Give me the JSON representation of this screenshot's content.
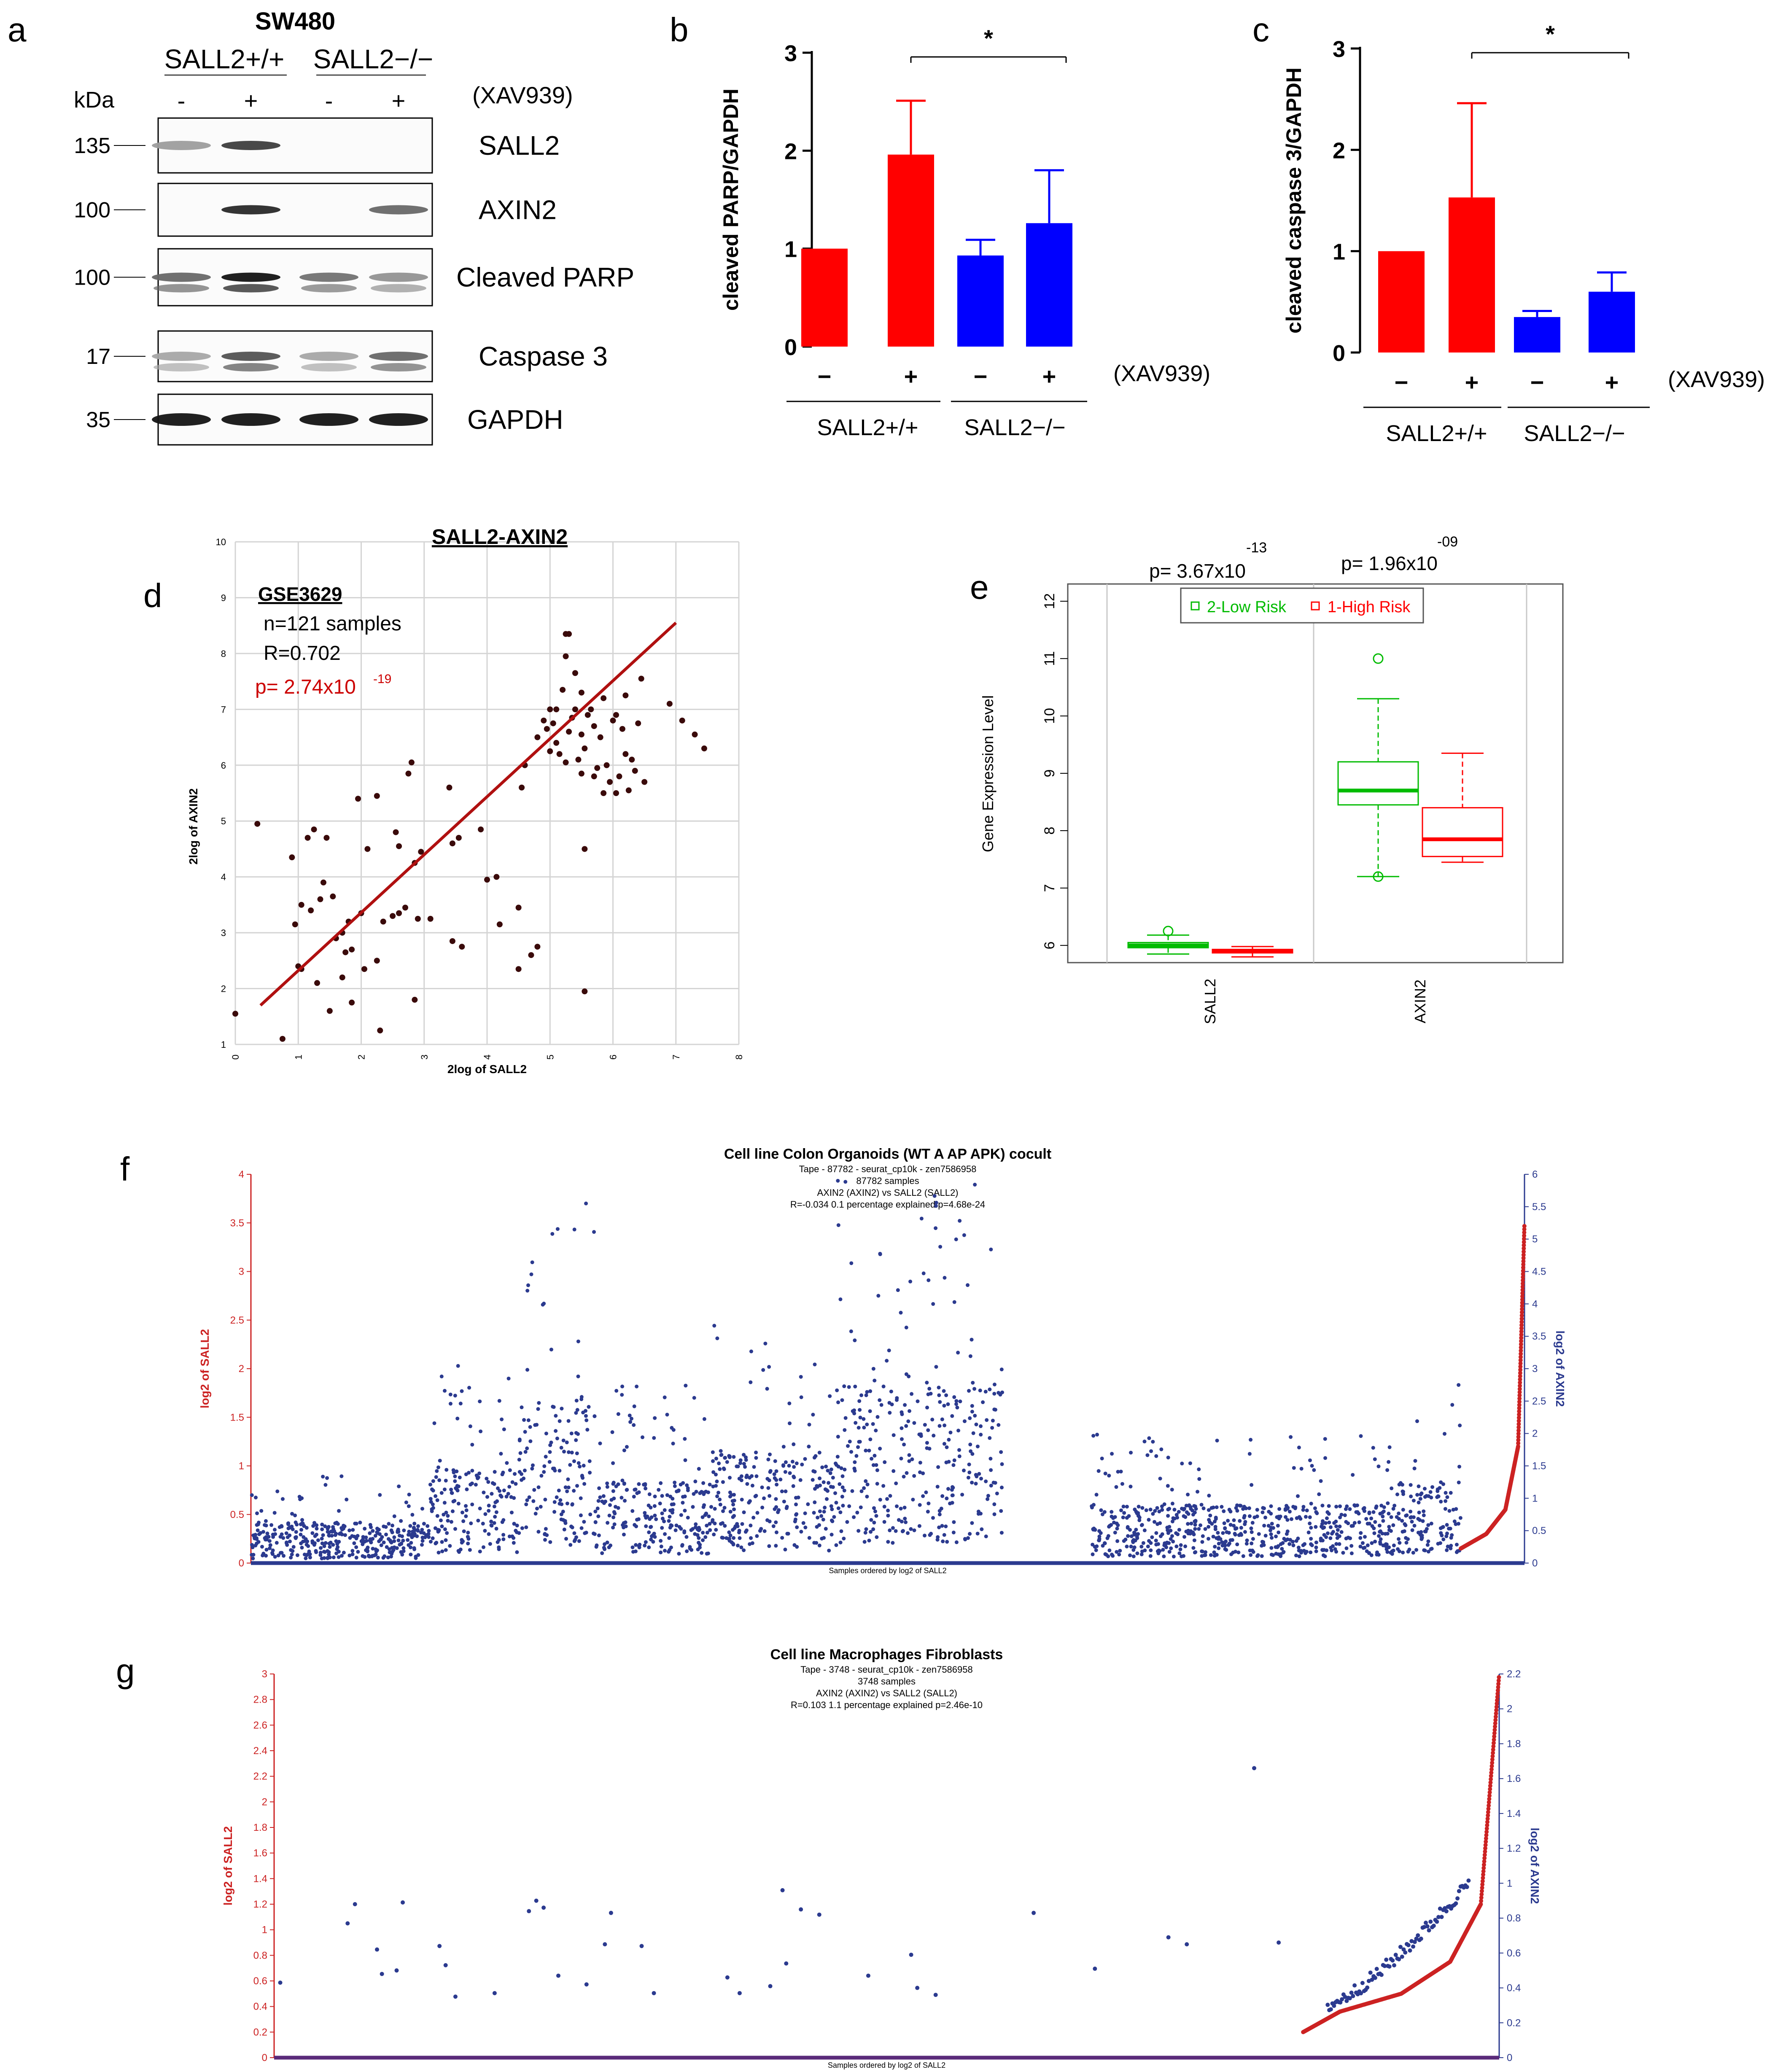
{
  "panel_letters": [
    "a",
    "b",
    "c",
    "d",
    "e",
    "f",
    "g"
  ],
  "blot": {
    "cell_line": "SW480",
    "groups": [
      "SALL2+/+",
      "SALL2−/−"
    ],
    "kda_label": "kDa",
    "treatment_label": "(XAV939)",
    "lane_signs": [
      "-",
      "+",
      "-",
      "+"
    ],
    "rows": [
      {
        "marker": "135",
        "label": "SALL2",
        "intensity": [
          0.35,
          0.8,
          0,
          0
        ]
      },
      {
        "marker": "100",
        "label": "AXIN2",
        "intensity": [
          0,
          0.9,
          0,
          0.6
        ]
      },
      {
        "marker": "100",
        "label": "Cleaved PARP",
        "intensity": [
          0.6,
          1,
          0.55,
          0.4
        ]
      },
      {
        "marker": "17",
        "label": "Caspase 3",
        "intensity": [
          0.3,
          0.7,
          0.3,
          0.6
        ]
      },
      {
        "marker": "35",
        "label": "GAPDH",
        "intensity": [
          1,
          1,
          1,
          1
        ]
      }
    ]
  },
  "chart_data": [
    {
      "panel": "b",
      "type": "bar",
      "ylabel": "cleaved PARP/GAPDH",
      "categories": [
        "−",
        "+",
        "−",
        "+"
      ],
      "group_labels": [
        "SALL2+/+",
        "SALL2−/−"
      ],
      "treatment_label": "(XAV939)",
      "values": [
        1.0,
        1.96,
        0.93,
        1.26
      ],
      "errors": [
        0,
        0.55,
        0.16,
        0.54
      ],
      "colors": [
        "#ff0000",
        "#ff0000",
        "#0000ff",
        "#0000ff"
      ],
      "ylim": [
        0,
        3
      ],
      "yticks": [
        0,
        1,
        2,
        3
      ],
      "significance": "*"
    },
    {
      "panel": "c",
      "type": "bar",
      "ylabel": "cleaved caspase 3/GAPDH",
      "categories": [
        "−",
        "+",
        "−",
        "+"
      ],
      "group_labels": [
        "SALL2+/+",
        "SALL2−/−"
      ],
      "treatment_label": "(XAV939)",
      "values": [
        1.0,
        1.53,
        0.35,
        0.6
      ],
      "errors": [
        0,
        0.93,
        0.06,
        0.19
      ],
      "colors": [
        "#ff0000",
        "#ff0000",
        "#0000ff",
        "#0000ff"
      ],
      "ylim": [
        0,
        3
      ],
      "yticks": [
        0,
        1,
        2,
        3
      ],
      "significance": "*"
    },
    {
      "panel": "d",
      "type": "scatter",
      "title": "SALL2-AXIN2",
      "dataset": "GSE3629",
      "n_text": "n=121 samples",
      "r_text": "R=0.702",
      "p_text": "p= 2.74x10",
      "p_exp": "-19",
      "xlabel": "2log of SALL2",
      "ylabel": "2log of AXIN2",
      "xlim": [
        0,
        8
      ],
      "ylim": [
        1,
        10
      ],
      "xticks": [
        0,
        1,
        2,
        3,
        4,
        5,
        6,
        7,
        8
      ],
      "yticks": [
        1,
        2,
        3,
        4,
        5,
        6,
        7,
        8,
        9,
        10
      ],
      "fit_line": [
        [
          0.4,
          1.7
        ],
        [
          7.0,
          8.55
        ]
      ],
      "points": [
        [
          0.0,
          1.55
        ],
        [
          0.35,
          4.95
        ],
        [
          0.75,
          1.1
        ],
        [
          0.9,
          4.35
        ],
        [
          0.95,
          3.15
        ],
        [
          1.0,
          2.4
        ],
        [
          1.05,
          2.35
        ],
        [
          1.05,
          3.5
        ],
        [
          1.15,
          4.7
        ],
        [
          1.2,
          3.4
        ],
        [
          1.25,
          4.85
        ],
        [
          1.3,
          2.1
        ],
        [
          1.35,
          3.6
        ],
        [
          1.4,
          3.9
        ],
        [
          1.45,
          4.7
        ],
        [
          1.5,
          1.6
        ],
        [
          1.55,
          3.65
        ],
        [
          1.6,
          2.9
        ],
        [
          1.7,
          3.0
        ],
        [
          1.7,
          2.2
        ],
        [
          1.75,
          2.65
        ],
        [
          1.8,
          3.2
        ],
        [
          1.85,
          2.7
        ],
        [
          1.85,
          1.75
        ],
        [
          1.95,
          5.4
        ],
        [
          2.0,
          3.35
        ],
        [
          2.05,
          2.35
        ],
        [
          2.1,
          4.5
        ],
        [
          2.25,
          2.5
        ],
        [
          2.25,
          5.45
        ],
        [
          2.3,
          1.25
        ],
        [
          2.35,
          3.2
        ],
        [
          2.5,
          3.3
        ],
        [
          2.55,
          4.8
        ],
        [
          2.6,
          3.35
        ],
        [
          2.6,
          4.55
        ],
        [
          2.7,
          3.45
        ],
        [
          2.75,
          5.85
        ],
        [
          2.8,
          6.05
        ],
        [
          2.85,
          4.25
        ],
        [
          2.85,
          1.8
        ],
        [
          2.9,
          3.25
        ],
        [
          2.95,
          4.45
        ],
        [
          3.1,
          3.25
        ],
        [
          3.4,
          5.6
        ],
        [
          3.45,
          2.85
        ],
        [
          3.45,
          4.6
        ],
        [
          3.55,
          4.7
        ],
        [
          3.6,
          2.75
        ],
        [
          3.9,
          4.85
        ],
        [
          4.0,
          3.95
        ],
        [
          4.15,
          4.0
        ],
        [
          4.2,
          3.15
        ],
        [
          4.5,
          2.35
        ],
        [
          4.5,
          3.45
        ],
        [
          4.55,
          5.6
        ],
        [
          4.6,
          6.0
        ],
        [
          4.7,
          2.6
        ],
        [
          4.8,
          6.5
        ],
        [
          4.8,
          2.75
        ],
        [
          4.9,
          6.8
        ],
        [
          4.95,
          6.65
        ],
        [
          5.0,
          7.0
        ],
        [
          5.0,
          6.25
        ],
        [
          5.05,
          6.75
        ],
        [
          5.1,
          7.0
        ],
        [
          5.1,
          6.4
        ],
        [
          5.15,
          6.2
        ],
        [
          5.2,
          7.35
        ],
        [
          5.25,
          6.05
        ],
        [
          5.25,
          8.35
        ],
        [
          5.25,
          7.95
        ],
        [
          5.3,
          8.35
        ],
        [
          5.3,
          6.6
        ],
        [
          5.35,
          6.85
        ],
        [
          5.4,
          7.0
        ],
        [
          5.4,
          7.65
        ],
        [
          5.45,
          6.1
        ],
        [
          5.5,
          7.3
        ],
        [
          5.5,
          6.55
        ],
        [
          5.5,
          5.85
        ],
        [
          5.55,
          6.3
        ],
        [
          5.55,
          4.5
        ],
        [
          5.55,
          1.95
        ],
        [
          5.6,
          6.9
        ],
        [
          5.65,
          7.0
        ],
        [
          5.7,
          6.7
        ],
        [
          5.7,
          5.8
        ],
        [
          5.75,
          5.95
        ],
        [
          5.8,
          6.5
        ],
        [
          5.85,
          7.2
        ],
        [
          5.85,
          5.5
        ],
        [
          5.9,
          6.0
        ],
        [
          5.95,
          5.7
        ],
        [
          6.0,
          6.8
        ],
        [
          6.05,
          5.5
        ],
        [
          6.05,
          6.9
        ],
        [
          6.1,
          5.8
        ],
        [
          6.15,
          6.65
        ],
        [
          6.2,
          7.25
        ],
        [
          6.2,
          6.2
        ],
        [
          6.25,
          5.55
        ],
        [
          6.3,
          6.1
        ],
        [
          6.35,
          5.9
        ],
        [
          6.4,
          6.75
        ],
        [
          6.45,
          7.55
        ],
        [
          6.5,
          5.7
        ],
        [
          6.9,
          7.1
        ],
        [
          7.1,
          6.8
        ],
        [
          7.3,
          6.55
        ],
        [
          7.45,
          6.3
        ]
      ]
    },
    {
      "panel": "e",
      "type": "box",
      "ylabel": "Gene Expression Level",
      "categories": [
        "SALL2",
        "AXIN2"
      ],
      "ylim": [
        5.7,
        12.3
      ],
      "yticks": [
        6,
        7,
        8,
        9,
        10,
        11,
        12
      ],
      "legend": [
        "2-Low Risk",
        "1-High Risk"
      ],
      "legend_position": "top",
      "pvalues": [
        {
          "text": "p= 3.67x10",
          "exp": "-13"
        },
        {
          "text": "p= 1.96x10",
          "exp": "-09"
        }
      ],
      "series": [
        {
          "name": "2-Low Risk",
          "color": "#00bb00",
          "boxes": [
            {
              "whislo": 5.85,
              "q1": 5.96,
              "med": 6.0,
              "q3": 6.05,
              "whishi": 6.18,
              "fliers": [
                6.25
              ]
            },
            {
              "whislo": 7.2,
              "q1": 8.45,
              "med": 8.7,
              "q3": 9.2,
              "whishi": 10.3,
              "fliers": [
                11.0,
                7.2
              ]
            }
          ]
        },
        {
          "name": "1-High Risk",
          "color": "#ff0000",
          "boxes": [
            {
              "whislo": 5.8,
              "q1": 5.87,
              "med": 5.9,
              "q3": 5.93,
              "whishi": 5.98,
              "fliers": []
            },
            {
              "whislo": 7.45,
              "q1": 7.55,
              "med": 7.85,
              "q3": 8.4,
              "whishi": 9.35,
              "fliers": []
            }
          ]
        }
      ]
    },
    {
      "panel": "f",
      "type": "scatter",
      "title": "Cell line Colon Organoids (WT A AP APK) cocult",
      "subtitle_lines": [
        "Tape - 87782 - seurat_cp10k - zen7586958",
        "87782 samples",
        "AXIN2 (AXIN2) vs SALL2 (SALL2)",
        "R=-0.034 0.1 percentage explained p=4.68e-24"
      ],
      "xlabel": "Samples ordered by log2 of SALL2",
      "ylabel_left": "log2 of SALL2",
      "ylabel_right": "log2 of AXIN2",
      "yticks_left": [
        "0",
        "0.5",
        "1",
        "1.5",
        "2",
        "2.5",
        "3",
        "3.5",
        "4"
      ],
      "yticks_right": [
        "0",
        "0.5",
        "1",
        "1.5",
        "2",
        "2.5",
        "3",
        "3.5",
        "4",
        "4.5",
        "5",
        "5.5",
        "6"
      ],
      "ylim_left": [
        0,
        4
      ],
      "ylim_right": [
        0,
        6
      ],
      "colors": {
        "sall2": "#cc2222",
        "axin2": "#2b3a8f"
      },
      "axin2_density_regions": [
        {
          "x0": 0.0,
          "x1": 0.14,
          "level": 0.35
        },
        {
          "x0": 0.14,
          "x1": 0.21,
          "level": 0.8
        },
        {
          "x0": 0.21,
          "x1": 0.27,
          "level": 1.4
        },
        {
          "x0": 0.27,
          "x1": 0.36,
          "level": 0.7
        },
        {
          "x0": 0.36,
          "x1": 0.46,
          "level": 0.95
        },
        {
          "x0": 0.46,
          "x1": 0.59,
          "level": 1.55
        },
        {
          "x0": 0.66,
          "x1": 0.71,
          "level": 0.5
        },
        {
          "x0": 0.71,
          "x1": 0.9,
          "level": 0.5
        },
        {
          "x0": 0.9,
          "x1": 0.95,
          "level": 0.7
        }
      ],
      "sall2_curve": [
        [
          0.95,
          0.15
        ],
        [
          0.97,
          0.3
        ],
        [
          0.985,
          0.55
        ],
        [
          0.995,
          1.2
        ],
        [
          1.0,
          3.5
        ]
      ]
    },
    {
      "panel": "g",
      "type": "scatter",
      "title": "Cell line Macrophages Fibroblasts",
      "subtitle_lines": [
        "Tape - 3748 - seurat_cp10k - zen7586958",
        "3748 samples",
        "AXIN2 (AXIN2) vs SALL2 (SALL2)",
        "R=0.103 1.1 percentage explained p=2.46e-10"
      ],
      "xlabel": "Samples ordered by log2 of SALL2",
      "ylabel_left": "log2 of SALL2",
      "ylabel_right": "log2 of AXIN2",
      "yticks_left": [
        "0",
        "0.2",
        "0.4",
        "0.6",
        "0.8",
        "1",
        "1.2",
        "1.4",
        "1.6",
        "1.8",
        "2",
        "2.2",
        "2.4",
        "2.6",
        "2.8",
        "3"
      ],
      "yticks_right": [
        "0",
        "0.2",
        "0.4",
        "0.6",
        "0.8",
        "1",
        "1.2",
        "1.4",
        "1.6",
        "1.8",
        "2",
        "2.2"
      ],
      "ylim_left": [
        0,
        3
      ],
      "ylim_right": [
        0,
        2.2
      ],
      "colors": {
        "sall2": "#cc2222",
        "axin2": "#2b3a8f"
      },
      "axin2_points": [
        [
          0.005,
          0.43
        ],
        [
          0.06,
          0.77
        ],
        [
          0.066,
          0.88
        ],
        [
          0.084,
          0.62
        ],
        [
          0.088,
          0.48
        ],
        [
          0.1,
          0.5
        ],
        [
          0.105,
          0.89
        ],
        [
          0.135,
          0.64
        ],
        [
          0.14,
          0.53
        ],
        [
          0.148,
          0.35
        ],
        [
          0.18,
          0.37
        ],
        [
          0.208,
          0.84
        ],
        [
          0.214,
          0.9
        ],
        [
          0.22,
          0.86
        ],
        [
          0.232,
          0.47
        ],
        [
          0.255,
          0.42
        ],
        [
          0.27,
          0.65
        ],
        [
          0.275,
          0.83
        ],
        [
          0.3,
          0.64
        ],
        [
          0.31,
          0.37
        ],
        [
          0.37,
          0.46
        ],
        [
          0.38,
          0.37
        ],
        [
          0.405,
          0.41
        ],
        [
          0.415,
          0.96
        ],
        [
          0.418,
          0.54
        ],
        [
          0.43,
          0.85
        ],
        [
          0.445,
          0.82
        ],
        [
          0.485,
          0.47
        ],
        [
          0.52,
          0.59
        ],
        [
          0.525,
          0.4
        ],
        [
          0.54,
          0.36
        ],
        [
          0.62,
          0.83
        ],
        [
          0.67,
          0.51
        ],
        [
          0.73,
          0.69
        ],
        [
          0.745,
          0.65
        ],
        [
          0.8,
          1.66
        ],
        [
          0.82,
          0.66
        ]
      ],
      "axin2_cluster": {
        "x0": 0.86,
        "x1": 0.975,
        "y0": 0.3,
        "y1": 1.0
      },
      "sall2_curve": [
        [
          0.84,
          0.2
        ],
        [
          0.87,
          0.36
        ],
        [
          0.92,
          0.5
        ],
        [
          0.96,
          0.75
        ],
        [
          0.985,
          1.2
        ],
        [
          1.0,
          3.0
        ]
      ]
    }
  ]
}
